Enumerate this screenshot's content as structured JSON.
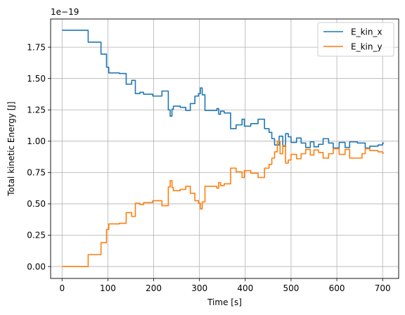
{
  "chart_data": {
    "type": "line",
    "xlabel": "Time [s]",
    "ylabel": "Total kinetic Energy [J]",
    "offset_text": "1e−19",
    "xlim": [
      -25,
      735
    ],
    "ylim": [
      -0.095,
      1.975
    ],
    "x_ticks": [
      0,
      100,
      200,
      300,
      400,
      500,
      600,
      700
    ],
    "x_tick_labels": [
      "0",
      "100",
      "200",
      "300",
      "400",
      "500",
      "600",
      "700"
    ],
    "y_ticks": [
      0,
      0.25,
      0.5,
      0.75,
      1.0,
      1.25,
      1.5,
      1.75
    ],
    "y_tick_labels": [
      "0.00",
      "0.25",
      "0.50",
      "0.75",
      "1.00",
      "1.25",
      "1.50",
      "1.75"
    ],
    "grid": true,
    "legend_position": "top-right",
    "series": [
      {
        "name": "E_kin_x",
        "color": "#1f77b4",
        "points": [
          [
            0,
            1.885
          ],
          [
            57,
            1.885
          ],
          [
            57,
            1.79
          ],
          [
            85,
            1.79
          ],
          [
            85,
            1.695
          ],
          [
            97,
            1.695
          ],
          [
            97,
            1.59
          ],
          [
            102,
            1.59
          ],
          [
            102,
            1.545
          ],
          [
            125,
            1.545
          ],
          [
            125,
            1.54
          ],
          [
            140,
            1.54
          ],
          [
            140,
            1.455
          ],
          [
            152,
            1.455
          ],
          [
            152,
            1.485
          ],
          [
            160,
            1.485
          ],
          [
            160,
            1.38
          ],
          [
            170,
            1.38
          ],
          [
            170,
            1.39
          ],
          [
            178,
            1.39
          ],
          [
            178,
            1.375
          ],
          [
            198,
            1.375
          ],
          [
            198,
            1.36
          ],
          [
            218,
            1.36
          ],
          [
            218,
            1.4
          ],
          [
            232,
            1.4
          ],
          [
            232,
            1.25
          ],
          [
            236,
            1.25
          ],
          [
            236,
            1.2
          ],
          [
            240,
            1.2
          ],
          [
            240,
            1.255
          ],
          [
            243,
            1.255
          ],
          [
            243,
            1.28
          ],
          [
            258,
            1.28
          ],
          [
            258,
            1.27
          ],
          [
            270,
            1.27
          ],
          [
            270,
            1.245
          ],
          [
            280,
            1.245
          ],
          [
            280,
            1.3
          ],
          [
            290,
            1.3
          ],
          [
            290,
            1.36
          ],
          [
            298,
            1.36
          ],
          [
            298,
            1.38
          ],
          [
            302,
            1.38
          ],
          [
            302,
            1.425
          ],
          [
            306,
            1.425
          ],
          [
            306,
            1.37
          ],
          [
            312,
            1.37
          ],
          [
            312,
            1.245
          ],
          [
            338,
            1.245
          ],
          [
            338,
            1.26
          ],
          [
            342,
            1.26
          ],
          [
            342,
            1.215
          ],
          [
            346,
            1.215
          ],
          [
            346,
            1.24
          ],
          [
            354,
            1.24
          ],
          [
            354,
            1.225
          ],
          [
            368,
            1.225
          ],
          [
            368,
            1.1
          ],
          [
            380,
            1.1
          ],
          [
            380,
            1.13
          ],
          [
            393,
            1.13
          ],
          [
            393,
            1.175
          ],
          [
            398,
            1.175
          ],
          [
            398,
            1.12
          ],
          [
            412,
            1.12
          ],
          [
            412,
            1.14
          ],
          [
            428,
            1.14
          ],
          [
            428,
            1.175
          ],
          [
            442,
            1.175
          ],
          [
            442,
            1.1
          ],
          [
            452,
            1.1
          ],
          [
            452,
            1.07
          ],
          [
            458,
            1.07
          ],
          [
            458,
            1.02
          ],
          [
            464,
            1.02
          ],
          [
            464,
            0.97
          ],
          [
            474,
            0.97
          ],
          [
            474,
            1.04
          ],
          [
            482,
            1.04
          ],
          [
            482,
            0.96
          ],
          [
            488,
            0.96
          ],
          [
            488,
            1.06
          ],
          [
            494,
            1.06
          ],
          [
            494,
            1.035
          ],
          [
            500,
            1.035
          ],
          [
            500,
            0.99
          ],
          [
            512,
            0.99
          ],
          [
            512,
            1.025
          ],
          [
            522,
            1.025
          ],
          [
            522,
            0.985
          ],
          [
            532,
            0.985
          ],
          [
            532,
            0.95
          ],
          [
            542,
            0.95
          ],
          [
            542,
            0.995
          ],
          [
            550,
            0.995
          ],
          [
            550,
            0.955
          ],
          [
            560,
            0.955
          ],
          [
            560,
            0.975
          ],
          [
            570,
            0.975
          ],
          [
            570,
            1.02
          ],
          [
            582,
            1.02
          ],
          [
            582,
            0.985
          ],
          [
            592,
            0.985
          ],
          [
            592,
            0.945
          ],
          [
            605,
            0.945
          ],
          [
            605,
            0.99
          ],
          [
            618,
            0.99
          ],
          [
            618,
            0.95
          ],
          [
            628,
            0.95
          ],
          [
            628,
            0.995
          ],
          [
            645,
            0.995
          ],
          [
            645,
            0.985
          ],
          [
            662,
            0.985
          ],
          [
            662,
            0.945
          ],
          [
            672,
            0.945
          ],
          [
            672,
            0.96
          ],
          [
            690,
            0.96
          ],
          [
            690,
            0.97
          ],
          [
            700,
            0.97
          ],
          [
            700,
            0.985
          ],
          [
            703,
            0.985
          ]
        ]
      },
      {
        "name": "E_kin_y",
        "color": "#ff7f0e",
        "points": [
          [
            0,
            0.0
          ],
          [
            57,
            0.0
          ],
          [
            57,
            0.095
          ],
          [
            85,
            0.095
          ],
          [
            85,
            0.19
          ],
          [
            97,
            0.19
          ],
          [
            97,
            0.295
          ],
          [
            102,
            0.295
          ],
          [
            102,
            0.34
          ],
          [
            125,
            0.34
          ],
          [
            125,
            0.345
          ],
          [
            140,
            0.345
          ],
          [
            140,
            0.43
          ],
          [
            152,
            0.43
          ],
          [
            152,
            0.4
          ],
          [
            160,
            0.4
          ],
          [
            160,
            0.505
          ],
          [
            170,
            0.505
          ],
          [
            170,
            0.495
          ],
          [
            178,
            0.495
          ],
          [
            178,
            0.51
          ],
          [
            198,
            0.51
          ],
          [
            198,
            0.525
          ],
          [
            218,
            0.525
          ],
          [
            218,
            0.485
          ],
          [
            232,
            0.485
          ],
          [
            232,
            0.635
          ],
          [
            236,
            0.635
          ],
          [
            236,
            0.685
          ],
          [
            240,
            0.685
          ],
          [
            240,
            0.63
          ],
          [
            243,
            0.63
          ],
          [
            243,
            0.605
          ],
          [
            258,
            0.605
          ],
          [
            258,
            0.615
          ],
          [
            270,
            0.615
          ],
          [
            270,
            0.64
          ],
          [
            280,
            0.64
          ],
          [
            280,
            0.585
          ],
          [
            290,
            0.585
          ],
          [
            290,
            0.525
          ],
          [
            298,
            0.525
          ],
          [
            298,
            0.505
          ],
          [
            302,
            0.505
          ],
          [
            302,
            0.46
          ],
          [
            306,
            0.46
          ],
          [
            306,
            0.515
          ],
          [
            312,
            0.515
          ],
          [
            312,
            0.64
          ],
          [
            338,
            0.64
          ],
          [
            338,
            0.625
          ],
          [
            342,
            0.625
          ],
          [
            342,
            0.67
          ],
          [
            346,
            0.67
          ],
          [
            346,
            0.645
          ],
          [
            354,
            0.645
          ],
          [
            354,
            0.66
          ],
          [
            368,
            0.66
          ],
          [
            368,
            0.785
          ],
          [
            380,
            0.785
          ],
          [
            380,
            0.755
          ],
          [
            393,
            0.755
          ],
          [
            393,
            0.71
          ],
          [
            398,
            0.71
          ],
          [
            398,
            0.765
          ],
          [
            412,
            0.765
          ],
          [
            412,
            0.745
          ],
          [
            428,
            0.745
          ],
          [
            428,
            0.71
          ],
          [
            442,
            0.71
          ],
          [
            442,
            0.785
          ],
          [
            452,
            0.785
          ],
          [
            452,
            0.815
          ],
          [
            458,
            0.815
          ],
          [
            458,
            0.865
          ],
          [
            464,
            0.865
          ],
          [
            464,
            0.915
          ],
          [
            470,
            0.915
          ],
          [
            470,
            1.0
          ],
          [
            476,
            1.0
          ],
          [
            476,
            0.9
          ],
          [
            482,
            0.9
          ],
          [
            482,
            0.965
          ],
          [
            488,
            0.965
          ],
          [
            488,
            0.825
          ],
          [
            494,
            0.825
          ],
          [
            494,
            0.85
          ],
          [
            500,
            0.85
          ],
          [
            500,
            0.895
          ],
          [
            512,
            0.895
          ],
          [
            512,
            0.86
          ],
          [
            522,
            0.86
          ],
          [
            522,
            0.9
          ],
          [
            532,
            0.9
          ],
          [
            532,
            0.935
          ],
          [
            542,
            0.935
          ],
          [
            542,
            0.89
          ],
          [
            550,
            0.89
          ],
          [
            550,
            0.93
          ],
          [
            560,
            0.93
          ],
          [
            560,
            0.91
          ],
          [
            570,
            0.91
          ],
          [
            570,
            0.865
          ],
          [
            582,
            0.865
          ],
          [
            582,
            0.9
          ],
          [
            592,
            0.9
          ],
          [
            592,
            0.94
          ],
          [
            605,
            0.94
          ],
          [
            605,
            0.895
          ],
          [
            618,
            0.895
          ],
          [
            618,
            0.935
          ],
          [
            628,
            0.935
          ],
          [
            628,
            0.865
          ],
          [
            655,
            0.865
          ],
          [
            655,
            0.9
          ],
          [
            662,
            0.9
          ],
          [
            662,
            0.94
          ],
          [
            672,
            0.94
          ],
          [
            672,
            0.925
          ],
          [
            690,
            0.925
          ],
          [
            690,
            0.915
          ],
          [
            700,
            0.915
          ],
          [
            700,
            0.905
          ],
          [
            703,
            0.905
          ]
        ]
      }
    ]
  }
}
